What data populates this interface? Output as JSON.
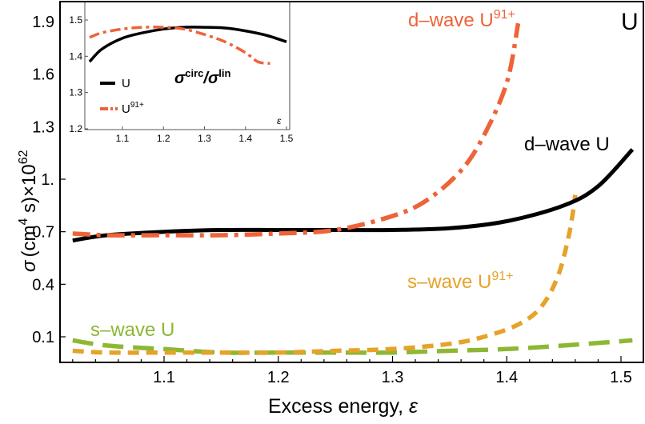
{
  "chart_data": [
    {
      "type": "line",
      "title": "U",
      "xlabel": "Excess energy, ε",
      "ylabel": "σ (cm⁴ s)×10⁶²",
      "xlim": [
        1.009,
        1.52
      ],
      "ylim": [
        0.0,
        1.99
      ],
      "xticks": [
        "1.1",
        "1.2",
        "1.3",
        "1.4",
        "1.5"
      ],
      "yticks": [
        "0.1",
        "0.4",
        "0.7",
        "1.",
        "1.3",
        "1.6",
        "1.9"
      ],
      "grid": false,
      "series": [
        {
          "name": "d-wave U",
          "style": "solid",
          "color": "#000000",
          "x": [
            1.02,
            1.05,
            1.1,
            1.15,
            1.2,
            1.25,
            1.3,
            1.35,
            1.4,
            1.45,
            1.48,
            1.51
          ],
          "y": [
            0.65,
            0.68,
            0.7,
            0.71,
            0.71,
            0.71,
            0.71,
            0.72,
            0.76,
            0.85,
            0.96,
            1.17
          ]
        },
        {
          "name": "d-wave U⁹¹⁺",
          "style": "dash-dot",
          "color": "#EE6338",
          "x": [
            1.02,
            1.05,
            1.1,
            1.15,
            1.2,
            1.25,
            1.3,
            1.33,
            1.36,
            1.38,
            1.4,
            1.41
          ],
          "y": [
            0.69,
            0.68,
            0.68,
            0.68,
            0.69,
            0.71,
            0.79,
            0.88,
            1.05,
            1.25,
            1.55,
            1.89
          ]
        },
        {
          "name": "s-wave U",
          "style": "long-dash",
          "color": "#8DB734",
          "x": [
            1.02,
            1.05,
            1.1,
            1.15,
            1.2,
            1.25,
            1.3,
            1.35,
            1.4,
            1.45,
            1.51
          ],
          "y": [
            0.08,
            0.05,
            0.03,
            0.01,
            0.01,
            0.01,
            0.01,
            0.02,
            0.03,
            0.05,
            0.08
          ]
        },
        {
          "name": "s-wave U⁹¹⁺",
          "style": "dashed",
          "color": "#E5A329",
          "x": [
            1.02,
            1.05,
            1.1,
            1.15,
            1.2,
            1.25,
            1.3,
            1.35,
            1.38,
            1.41,
            1.43,
            1.445,
            1.455,
            1.46
          ],
          "y": [
            0.02,
            0.01,
            0.01,
            0.01,
            0.01,
            0.02,
            0.03,
            0.06,
            0.1,
            0.17,
            0.27,
            0.45,
            0.7,
            0.91
          ]
        }
      ],
      "annotations": [
        "d-wave U⁹¹⁺",
        "d-wave U",
        "s-wave U⁹¹⁺",
        "s-wave U",
        "U"
      ]
    },
    {
      "type": "line",
      "title": "σcirc/σlin",
      "xlabel": "ε",
      "ylabel": "",
      "xlim": [
        1.0,
        1.51
      ],
      "ylim": [
        1.2,
        1.55
      ],
      "xticks": [
        "1.1",
        "1.2",
        "1.3",
        "1.4",
        "1.5"
      ],
      "yticks": [
        "1.2",
        "1.3",
        "1.4",
        "1.5"
      ],
      "legend_position": "lower-left",
      "series": [
        {
          "name": "U",
          "style": "solid",
          "color": "#000000",
          "x": [
            1.02,
            1.05,
            1.1,
            1.15,
            1.2,
            1.25,
            1.3,
            1.35,
            1.4,
            1.45,
            1.5
          ],
          "y": [
            1.385,
            1.42,
            1.45,
            1.465,
            1.475,
            1.48,
            1.48,
            1.478,
            1.47,
            1.458,
            1.44
          ]
        },
        {
          "name": "U⁹¹⁺",
          "style": "dash-dot",
          "color": "#EE6338",
          "x": [
            1.02,
            1.05,
            1.1,
            1.15,
            1.2,
            1.25,
            1.3,
            1.35,
            1.4,
            1.43,
            1.46
          ],
          "y": [
            1.452,
            1.465,
            1.475,
            1.48,
            1.48,
            1.475,
            1.46,
            1.44,
            1.41,
            1.385,
            1.38
          ]
        }
      ]
    }
  ],
  "labels": {
    "panel": "U",
    "ylabel_sigma": "σ",
    "ylabel_units": "(cm",
    "ylabel_units_exp": "4",
    "ylabel_units_end": " s)×10",
    "ylabel_exp": "62",
    "xlabel": "Excess energy, ",
    "xlabel_eps": "ε",
    "dwave_u91": "d–wave U",
    "dwave_u91_sup": "91+",
    "dwave_u": "d–wave U",
    "swave_u91": "s–wave U",
    "swave_u91_sup": "91+",
    "swave_u": "s–wave U",
    "inset_ratio_sigma1": "σ",
    "inset_ratio_circ": "circ",
    "inset_ratio_slash": "/",
    "inset_ratio_sigma2": "σ",
    "inset_ratio_lin": "lin",
    "inset_xlabel": "ε",
    "legend_u": "U",
    "legend_u91": "U",
    "legend_u91_sup": "91+"
  },
  "colors": {
    "black": "#000000",
    "orange": "#EE6338",
    "gold": "#E5A329",
    "green": "#8DB734"
  }
}
